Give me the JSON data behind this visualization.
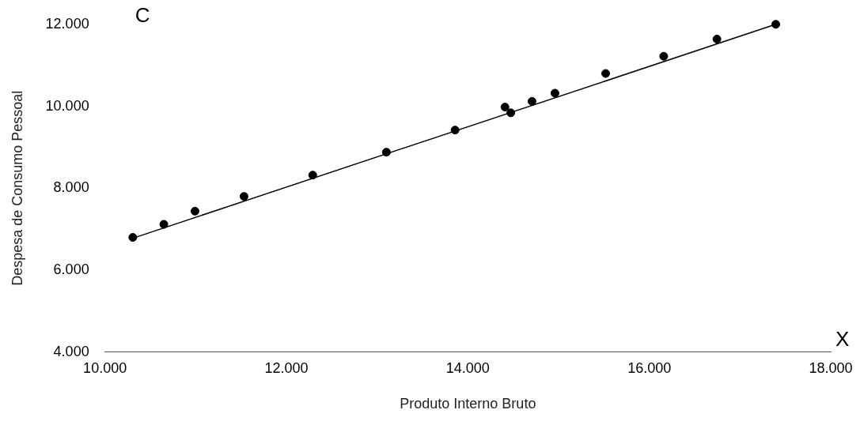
{
  "chart_data": {
    "type": "scatter",
    "xlabel": "Produto Interno Bruto",
    "ylabel": "Despesa de Consumo Pessoal",
    "annotations": [
      "C",
      "X"
    ],
    "series": [
      {
        "type": "scatter",
        "marker": "circle",
        "color": "#000000",
        "x": [
          10307,
          10649,
          10992,
          11533,
          12290,
          13102,
          13859,
          14409,
          14473,
          14707,
          14960,
          15519,
          16159,
          16745,
          17394
        ],
        "values": [
          6800,
          7120,
          7440,
          7800,
          8320,
          8880,
          9420,
          9980,
          9840,
          10120,
          10320,
          10800,
          11220,
          11640,
          12000
        ]
      },
      {
        "type": "line",
        "marker": "none",
        "color": "#000000",
        "x": [
          10307,
          17394
        ],
        "values": [
          6780,
          12000
        ]
      }
    ],
    "line_style": "solid",
    "grid": false,
    "legend": false,
    "xlim": [
      10000,
      18000
    ],
    "ylim": [
      4000,
      12000
    ],
    "xticks": [
      {
        "value": 10000,
        "label": "10.000"
      },
      {
        "value": 12000,
        "label": "12.000"
      },
      {
        "value": 14000,
        "label": "14.000"
      },
      {
        "value": 16000,
        "label": "16.000"
      },
      {
        "value": 18000,
        "label": "18.000"
      }
    ],
    "yticks": [
      {
        "value": 4000,
        "label": "4.000"
      },
      {
        "value": 6000,
        "label": "6.000"
      },
      {
        "value": 8000,
        "label": "8.000"
      },
      {
        "value": 10000,
        "label": "10.000"
      },
      {
        "value": 12000,
        "label": "12.000"
      }
    ]
  }
}
